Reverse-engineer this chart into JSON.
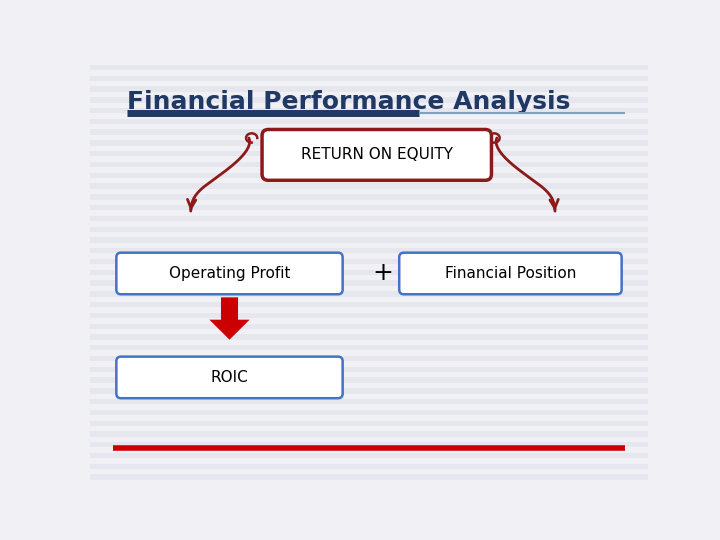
{
  "title": "Financial Performance Analysis",
  "title_color": "#1F3864",
  "title_fontsize": 18,
  "bg_color": "#F0F0F5",
  "stripe_color": "#E6E6EE",
  "box_roe_text": "RETURN ON EQUITY",
  "box_roe_color": "#8B1A1A",
  "box_roe_fill": "#FFFFFF",
  "box_op_text": "Operating Profit",
  "box_op_color": "#4472C4",
  "box_op_fill": "#FFFFFF",
  "box_fp_text": "Financial Position",
  "box_fp_color": "#4472C4",
  "box_fp_fill": "#FFFFFF",
  "box_roic_text": "ROIC",
  "box_roic_color": "#4472C4",
  "box_roic_fill": "#FFFFFF",
  "plus_text": "+",
  "arrow_color": "#CC0000",
  "scroll_arrow_color": "#8B1A1A",
  "title_line_dark": "#1F3864",
  "title_line_light": "#7F9FBF",
  "footer_line_color": "#CC0000"
}
